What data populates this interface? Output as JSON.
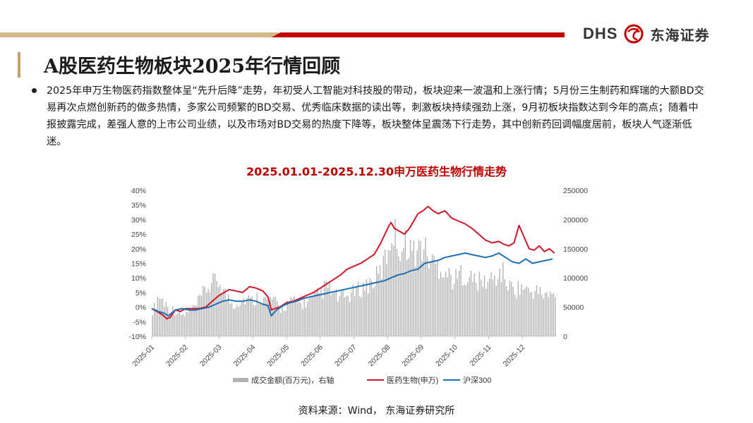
{
  "header": {
    "logo_en": "DHS",
    "logo_cn": "东海证券"
  },
  "slide": {
    "title": "A股医药生物板块2025年行情回顾",
    "paragraph": "2025年申万生物医药指数整体呈“先升后降”走势，年初受人工智能对科技股的带动，板块迎来一波温和上涨行情；5月份三生制药和辉瑞的大额BD交易再次点燃创新药的做多热情，多家公司频繁的BD交易、优秀临床数据的读出等，刺激板块持续强劲上涨，9月初板块指数达到今年的高点；随着中报披露完成，差强人意的上市公司业绩，以及市场对BD交易的热度下降等，板块整体呈震荡下行走势，其中创新药回调幅度居前，板块人气逐渐低迷。",
    "source": "资料来源：Wind， 东海证券研究所"
  },
  "colors": {
    "gold": "#d6b98a",
    "red": "#c00000",
    "pharma_line": "#d0182c",
    "hs300_line": "#1f6fb5",
    "volume_bar": "#b3b3b3"
  },
  "chart_data": {
    "type": "line",
    "title": "2025.01.01-2025.12.30申万医药生物行情走势",
    "x_tick_labels": [
      "2025-01",
      "2025-02",
      "2025-03",
      "2025-04",
      "2025-05",
      "2025-06",
      "2025-07",
      "2025-08",
      "2025-09",
      "2025-10",
      "2025-11",
      "2025-12"
    ],
    "y_left_ticks": [
      "40%",
      "35%",
      "30%",
      "25%",
      "20%",
      "15%",
      "10%",
      "5%",
      "0%",
      "-5%",
      "-10%"
    ],
    "y_right_ticks": [
      "250000",
      "200000",
      "150000",
      "100000",
      "50000",
      "0"
    ],
    "ylim_left": [
      -10,
      40
    ],
    "ylim_right": [
      0,
      250000
    ],
    "x_range": [
      0,
      12
    ],
    "series": [
      {
        "name": "成交金额(百万元)，右轴",
        "type": "bar",
        "axis": "right",
        "x": [
          0.05,
          0.2,
          0.35,
          0.5,
          0.65,
          0.8,
          0.95,
          1.3,
          1.6,
          1.8,
          2.0,
          2.2,
          2.4,
          2.6,
          2.8,
          3.0,
          3.2,
          3.4,
          3.55,
          3.7,
          3.85,
          4.0,
          4.2,
          4.4,
          4.6,
          4.8,
          5.0,
          5.2,
          5.4,
          5.6,
          5.8,
          6.0,
          6.2,
          6.4,
          6.6,
          6.8,
          7.0,
          7.15,
          7.3,
          7.45,
          7.6,
          7.75,
          7.9,
          8.05,
          8.2,
          8.4,
          8.6,
          8.8,
          9.0,
          9.2,
          9.4,
          9.6,
          9.8,
          10.0,
          10.2,
          10.4,
          10.6,
          10.8,
          11.0,
          11.2,
          11.4,
          11.6,
          11.8
        ],
        "values": [
          45000,
          70000,
          60000,
          50000,
          45000,
          40000,
          35000,
          50000,
          80000,
          90000,
          95000,
          70000,
          55000,
          60000,
          65000,
          60000,
          70000,
          60000,
          65000,
          55000,
          45000,
          55000,
          60000,
          55000,
          58000,
          62000,
          75000,
          85000,
          70000,
          65000,
          68000,
          75000,
          82000,
          88000,
          95000,
          110000,
          145000,
          185000,
          160000,
          150000,
          165000,
          140000,
          150000,
          155000,
          135000,
          125000,
          120000,
          105000,
          95000,
          110000,
          100000,
          95000,
          92000,
          95000,
          100000,
          110000,
          85000,
          80000,
          85000,
          75000,
          78000,
          72000,
          70000
        ]
      },
      {
        "name": "医药生物(申万)",
        "type": "line",
        "axis": "left",
        "x": [
          0,
          0.15,
          0.3,
          0.45,
          0.55,
          0.7,
          0.85,
          1.0,
          1.2,
          1.4,
          1.6,
          1.8,
          2.0,
          2.15,
          2.3,
          2.5,
          2.7,
          2.9,
          3.1,
          3.3,
          3.45,
          3.55,
          3.65,
          3.8,
          4.0,
          4.2,
          4.4,
          4.6,
          4.8,
          5.0,
          5.2,
          5.4,
          5.6,
          5.8,
          6.0,
          6.2,
          6.4,
          6.6,
          6.8,
          7.0,
          7.1,
          7.2,
          7.35,
          7.5,
          7.65,
          7.8,
          7.9,
          8.05,
          8.2,
          8.35,
          8.5,
          8.7,
          8.9,
          9.1,
          9.3,
          9.5,
          9.7,
          9.9,
          10.1,
          10.3,
          10.45,
          10.6,
          10.75,
          10.9,
          11.05,
          11.2,
          11.35,
          11.5,
          11.65,
          11.8,
          11.95
        ],
        "values": [
          -0.5,
          -1.5,
          -2.5,
          -4,
          -3.5,
          -1,
          -1.5,
          -0.5,
          -0.5,
          -0.5,
          0,
          2,
          4,
          5,
          6,
          5.5,
          5,
          7,
          6.5,
          5.5,
          3.5,
          -1,
          -0.5,
          0,
          1.5,
          2,
          3,
          4,
          5,
          6.5,
          8,
          9.5,
          11,
          13,
          14,
          15,
          16.5,
          18,
          22,
          27,
          29,
          27,
          26,
          25,
          27,
          30,
          32,
          33,
          34.5,
          33,
          32,
          33,
          30.5,
          29.5,
          28.5,
          27,
          25,
          23,
          22,
          22.5,
          21.5,
          21,
          22,
          28,
          24,
          20,
          19.5,
          21,
          19,
          20,
          18.5
        ]
      },
      {
        "name": "沪深300",
        "type": "line",
        "axis": "left",
        "x": [
          0,
          0.2,
          0.35,
          0.5,
          0.7,
          0.9,
          1.1,
          1.3,
          1.5,
          1.7,
          1.9,
          2.1,
          2.3,
          2.5,
          2.7,
          2.9,
          3.1,
          3.3,
          3.45,
          3.55,
          3.7,
          3.9,
          4.1,
          4.3,
          4.5,
          4.7,
          4.9,
          5.1,
          5.3,
          5.5,
          5.7,
          5.9,
          6.1,
          6.3,
          6.5,
          6.7,
          6.9,
          7.1,
          7.3,
          7.5,
          7.7,
          7.9,
          8.1,
          8.3,
          8.5,
          8.7,
          8.9,
          9.1,
          9.3,
          9.5,
          9.7,
          9.9,
          10.1,
          10.3,
          10.5,
          10.7,
          10.9,
          11.1,
          11.3,
          11.5,
          11.7,
          11.9
        ],
        "values": [
          -0.5,
          -1.5,
          -2,
          -3,
          -1,
          -0.5,
          -1,
          -1,
          -0.5,
          0,
          1,
          2,
          2.5,
          2,
          2,
          2.5,
          2,
          1,
          0.5,
          -3,
          -1,
          0.5,
          1.5,
          2,
          3,
          3.5,
          4,
          4.5,
          5,
          5.5,
          6,
          6.5,
          7,
          7.5,
          8,
          8.5,
          9,
          10,
          11,
          11.5,
          12.5,
          13,
          15,
          15.5,
          16,
          17,
          17.5,
          18,
          18.5,
          18,
          17.5,
          17,
          17.5,
          18.5,
          17,
          15.5,
          15,
          16.5,
          15,
          15.5,
          16,
          16.5
        ]
      }
    ],
    "legend": {
      "placement": "bottom",
      "entries": [
        "成交金额(百万元)，右轴",
        "医药生物(申万)",
        "沪深300"
      ]
    },
    "grid": false
  }
}
